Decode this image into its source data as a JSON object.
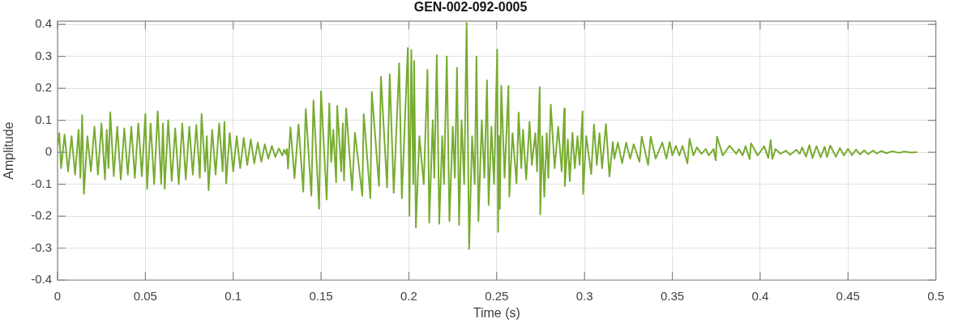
{
  "chart_data": {
    "type": "line",
    "title": "GEN-002-092-0005",
    "xlabel": "Time (s)",
    "ylabel": "Amplitude",
    "x": [
      0,
      0.001,
      0.002,
      0.004,
      0.006,
      0.008,
      0.01,
      0.012,
      0.013,
      0.014,
      0.015,
      0.017,
      0.019,
      0.021,
      0.023,
      0.025,
      0.027,
      0.028,
      0.029,
      0.03,
      0.032,
      0.034,
      0.036,
      0.038,
      0.04,
      0.042,
      0.044,
      0.046,
      0.048,
      0.05,
      0.051,
      0.053,
      0.055,
      0.057,
      0.059,
      0.06,
      0.061,
      0.063,
      0.065,
      0.067,
      0.069,
      0.071,
      0.073,
      0.075,
      0.077,
      0.079,
      0.081,
      0.082,
      0.084,
      0.085,
      0.086,
      0.088,
      0.09,
      0.092,
      0.094,
      0.095,
      0.096,
      0.098,
      0.1,
      0.102,
      0.104,
      0.106,
      0.108,
      0.11,
      0.112,
      0.114,
      0.116,
      0.118,
      0.12,
      0.122,
      0.124,
      0.126,
      0.128,
      0.129,
      0.13,
      0.1306,
      0.1312,
      0.1326,
      0.1349,
      0.1372,
      0.1399,
      0.1413,
      0.1445,
      0.1457,
      0.1489,
      0.15,
      0.1532,
      0.1547,
      0.1558,
      0.157,
      0.1586,
      0.1592,
      0.1615,
      0.1624,
      0.1631,
      0.1643,
      0.1677,
      0.1693,
      0.1735,
      0.1743,
      0.1781,
      0.1789,
      0.183,
      0.1841,
      0.1876,
      0.1891,
      0.1914,
      0.1945,
      0.196,
      0.1994,
      0.2003,
      0.2014,
      0.2025,
      0.203,
      0.204,
      0.206,
      0.2085,
      0.2106,
      0.2116,
      0.2136,
      0.2145,
      0.2159,
      0.2173,
      0.219,
      0.22,
      0.2216,
      0.2231,
      0.225,
      0.2262,
      0.2274,
      0.2286,
      0.23,
      0.2315,
      0.2329,
      0.2343,
      0.236,
      0.2375,
      0.2385,
      0.2396,
      0.2415,
      0.243,
      0.2445,
      0.2454,
      0.247,
      0.2485,
      0.2503,
      0.2508,
      0.2513,
      0.2518,
      0.2526,
      0.2545,
      0.2567,
      0.2572,
      0.259,
      0.2613,
      0.2625,
      0.264,
      0.265,
      0.2668,
      0.2687,
      0.27,
      0.272,
      0.273,
      0.2745,
      0.2748,
      0.276,
      0.2771,
      0.2785,
      0.2794,
      0.2808,
      0.283,
      0.285,
      0.287,
      0.2885,
      0.2888,
      0.2905,
      0.2916,
      0.2931,
      0.2945,
      0.296,
      0.2972,
      0.2989,
      0.2992,
      0.301,
      0.3038,
      0.3054,
      0.307,
      0.3085,
      0.31,
      0.3122,
      0.3142,
      0.3161,
      0.317,
      0.319,
      0.3214,
      0.3237,
      0.326,
      0.328,
      0.3313,
      0.3326,
      0.3362,
      0.3377,
      0.3405,
      0.3443,
      0.3466,
      0.3485,
      0.35,
      0.352,
      0.354,
      0.3558,
      0.3586,
      0.3598,
      0.362,
      0.364,
      0.3666,
      0.369,
      0.3708,
      0.3735,
      0.3747,
      0.3754,
      0.3787,
      0.3826,
      0.3864,
      0.3879,
      0.39,
      0.3917,
      0.394,
      0.3948,
      0.3986,
      0.4023,
      0.4046,
      0.406,
      0.4069,
      0.4087,
      0.4115,
      0.4147,
      0.417,
      0.4206,
      0.4225,
      0.4239,
      0.4261,
      0.428,
      0.4298,
      0.4321,
      0.4344,
      0.4367,
      0.4381,
      0.4399,
      0.4431,
      0.4454,
      0.4477,
      0.45,
      0.4523,
      0.4546,
      0.4569,
      0.4592,
      0.4615,
      0.4642,
      0.4665,
      0.4688,
      0.472,
      0.4752,
      0.4789,
      0.4821,
      0.4858,
      0.489
    ],
    "values": [
      0.02,
      0.06,
      -0.05,
      0.055,
      -0.06,
      0.05,
      -0.07,
      0.07,
      -0.08,
      0.116,
      -0.13,
      0.05,
      -0.06,
      0.08,
      -0.07,
      0.09,
      -0.085,
      0.07,
      -0.05,
      0.125,
      -0.075,
      0.08,
      -0.085,
      0.075,
      -0.07,
      0.08,
      -0.08,
      0.09,
      -0.075,
      0.12,
      -0.115,
      0.09,
      -0.1,
      0.128,
      -0.1,
      0.09,
      -0.114,
      0.1,
      -0.09,
      0.075,
      -0.1,
      0.09,
      -0.085,
      0.08,
      -0.07,
      0.085,
      -0.08,
      0.12,
      -0.06,
      0.05,
      -0.119,
      0.07,
      -0.07,
      0.09,
      -0.06,
      0.095,
      -0.098,
      0.06,
      -0.06,
      0.05,
      -0.05,
      0.045,
      -0.04,
      0.04,
      -0.035,
      0.03,
      -0.03,
      0.025,
      -0.02,
      0.02,
      -0.015,
      0.012,
      -0.01,
      0.008,
      -0.005,
      0.01,
      -0.051,
      0.078,
      -0.081,
      0.087,
      -0.123,
      0.135,
      -0.136,
      0.162,
      -0.177,
      0.191,
      -0.148,
      0.153,
      -0.03,
      0.07,
      -0.094,
      0.145,
      -0.06,
      0.09,
      -0.089,
      0.137,
      -0.119,
      0.061,
      -0.136,
      0.12,
      -0.144,
      0.189,
      -0.106,
      0.236,
      -0.11,
      0.244,
      -0.127,
      0.278,
      -0.144,
      0.326,
      -0.199,
      0.32,
      -0.1,
      0.286,
      -0.236,
      0.05,
      -0.1,
      0.258,
      -0.22,
      0.1,
      -0.08,
      0.304,
      -0.224,
      0.05,
      -0.1,
      0.3,
      -0.216,
      0.08,
      -0.08,
      0.264,
      -0.228,
      0.1,
      -0.1,
      0.405,
      -0.303,
      0.05,
      -0.1,
      0.3,
      -0.216,
      0.1,
      -0.08,
      0.225,
      -0.165,
      0.08,
      -0.1,
      0.321,
      -0.249,
      0.05,
      -0.177,
      0.208,
      -0.08,
      0.207,
      -0.139,
      0.06,
      -0.097,
      0.124,
      -0.05,
      0.07,
      -0.085,
      0.095,
      -0.04,
      0.06,
      -0.06,
      0.204,
      -0.194,
      0.05,
      -0.139,
      0.06,
      -0.081,
      0.149,
      -0.05,
      0.08,
      -0.06,
      0.137,
      -0.106,
      0.04,
      -0.09,
      0.061,
      -0.05,
      0.05,
      -0.04,
      0.128,
      -0.13,
      0.05,
      -0.068,
      0.087,
      -0.04,
      0.06,
      -0.05,
      0.088,
      -0.076,
      0.032,
      -0.02,
      0.03,
      -0.035,
      0.03,
      -0.02,
      0.025,
      -0.03,
      0.049,
      -0.04,
      0.049,
      -0.02,
      0.03,
      -0.02,
      0.032,
      -0.01,
      0.02,
      -0.01,
      0.02,
      -0.035,
      0.042,
      -0.01,
      0.015,
      -0.005,
      0.01,
      -0.01,
      0.01,
      -0.025,
      0.049,
      -0.01,
      0.02,
      -0.005,
      0.01,
      -0.01,
      0.019,
      -0.022,
      0.028,
      -0.01,
      0.019,
      -0.018,
      0.038,
      -0.021,
      0.01,
      -0.005,
      0.005,
      -0.008,
      0.008,
      -0.005,
      0.015,
      -0.014,
      0.022,
      -0.018,
      0.019,
      -0.016,
      0.017,
      -0.015,
      0.021,
      -0.014,
      0.013,
      -0.01,
      0.011,
      -0.009,
      0.008,
      -0.007,
      0.006,
      -0.006,
      0.005,
      -0.004,
      0.004,
      -0.003,
      0.003,
      -0.002,
      0.002,
      -0.001,
      0
    ],
    "color": "#77ac30",
    "xlim": [
      0,
      0.5
    ],
    "ylim": [
      -0.4,
      0.41
    ],
    "xticks": [
      0,
      0.05,
      0.1,
      0.15,
      0.2,
      0.25,
      0.3,
      0.35,
      0.4,
      0.45,
      0.5
    ],
    "yticks": [
      -0.4,
      -0.3,
      -0.2,
      -0.1,
      0,
      0.1,
      0.2,
      0.3,
      0.4
    ],
    "grid": true
  }
}
